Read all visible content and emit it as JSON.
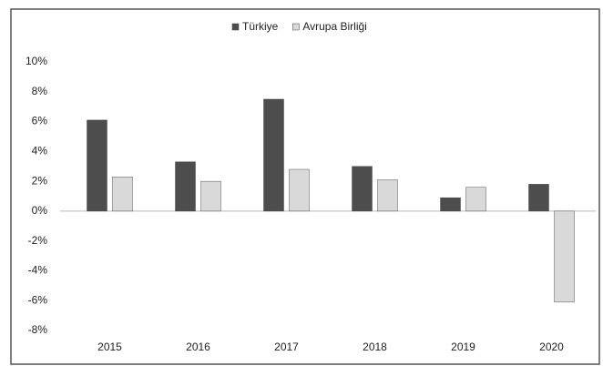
{
  "chart_data": {
    "type": "bar",
    "categories": [
      "2015",
      "2016",
      "2017",
      "2018",
      "2019",
      "2020"
    ],
    "series": [
      {
        "name": "Türkiye",
        "color": "#4d4d4d",
        "values": [
          6.1,
          3.3,
          7.5,
          3.0,
          0.9,
          1.8
        ]
      },
      {
        "name": "Avrupa Birliği",
        "color": "#d9d9d9",
        "values": [
          2.3,
          2.0,
          2.8,
          2.1,
          1.6,
          -6.1
        ]
      }
    ],
    "ylim": [
      -8,
      10
    ],
    "yticks": [
      {
        "value": -8,
        "label": "-8%"
      },
      {
        "value": -6,
        "label": "-6%"
      },
      {
        "value": -4,
        "label": "-4%"
      },
      {
        "value": -2,
        "label": "-2%"
      },
      {
        "value": 0,
        "label": "0%"
      },
      {
        "value": 2,
        "label": "2%"
      },
      {
        "value": 4,
        "label": "4%"
      },
      {
        "value": 6,
        "label": "6%"
      },
      {
        "value": 8,
        "label": "8%"
      },
      {
        "value": 10,
        "label": "10%"
      }
    ],
    "grid": false,
    "legend": "top"
  }
}
